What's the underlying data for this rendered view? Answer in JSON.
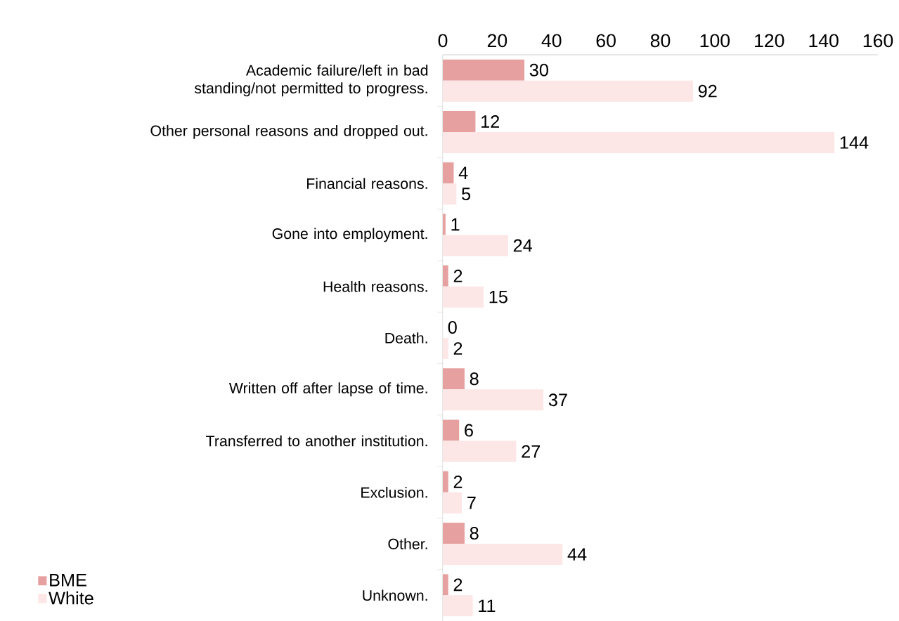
{
  "chart_data": {
    "type": "bar",
    "orientation": "horizontal",
    "categories": [
      "Academic failure/left in bad standing/not permitted to progress.",
      "Other personal reasons and dropped out.",
      "Financial reasons.",
      "Gone into employment.",
      "Health reasons.",
      "Death.",
      "Written off after lapse of time.",
      "Transferred to another institution.",
      "Exclusion.",
      "Other.",
      "Unknown."
    ],
    "series": [
      {
        "name": "BME",
        "color": "#e6a0a0",
        "values": [
          30,
          12,
          4,
          1,
          2,
          0,
          8,
          6,
          2,
          8,
          2
        ]
      },
      {
        "name": "White",
        "color": "#fde6e6",
        "values": [
          92,
          144,
          5,
          24,
          15,
          2,
          37,
          27,
          7,
          44,
          11
        ]
      }
    ],
    "xlim": [
      0,
      160
    ],
    "xticks": [
      0,
      20,
      40,
      60,
      80,
      100,
      120,
      140,
      160
    ],
    "data_labels": true,
    "legend": "bottom left",
    "grid": false
  }
}
